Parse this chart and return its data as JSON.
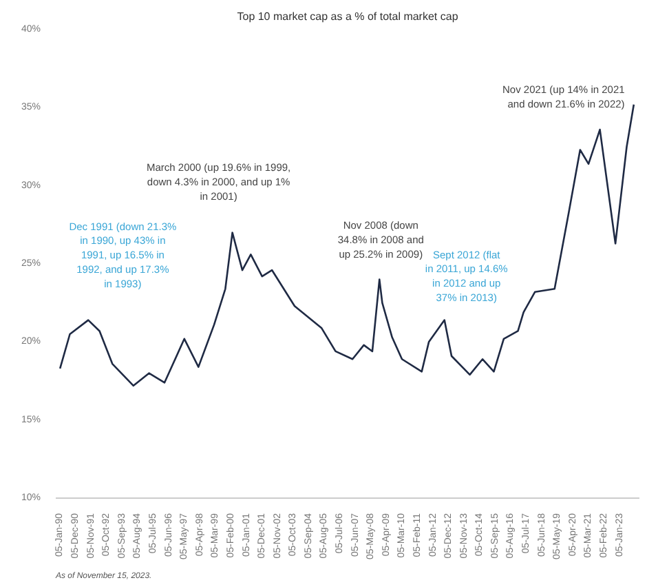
{
  "chart_data": {
    "type": "line",
    "title": "Top 10 market cap as a % of total market cap",
    "x": [
      "1990-01",
      "1990-08",
      "1991-09",
      "1992-05",
      "1993-02",
      "1994-05",
      "1995-04",
      "1996-03",
      "1997-05",
      "1998-03",
      "1999-02",
      "1999-10",
      "2000-03",
      "2000-10",
      "2001-04",
      "2001-12",
      "2002-07",
      "2003-11",
      "2005-06",
      "2006-04",
      "2007-04",
      "2007-12",
      "2008-06",
      "2008-11",
      "2009-01",
      "2009-08",
      "2010-03",
      "2011-05",
      "2011-10",
      "2012-09",
      "2013-02",
      "2014-03",
      "2014-12",
      "2015-08",
      "2016-03",
      "2017-01",
      "2017-05",
      "2018-01",
      "2019-03",
      "2020-01",
      "2020-09",
      "2021-03",
      "2021-11",
      "2022-10",
      "2023-06",
      "2023-11"
    ],
    "series": [
      {
        "color": "#1f2a44",
        "values": [
          18.3,
          20.5,
          21.4,
          20.7,
          18.6,
          17.2,
          18.0,
          17.4,
          20.2,
          18.4,
          21.1,
          23.4,
          27.0,
          24.6,
          25.6,
          24.2,
          24.6,
          22.3,
          20.9,
          19.4,
          18.9,
          19.8,
          19.4,
          24.0,
          22.5,
          20.3,
          18.9,
          18.1,
          20.0,
          21.4,
          19.1,
          17.9,
          18.9,
          18.1,
          20.2,
          20.7,
          21.9,
          23.2,
          23.4,
          28.3,
          32.3,
          31.4,
          33.6,
          26.3,
          32.5,
          35.2
        ]
      }
    ],
    "ylim": [
      10,
      40
    ],
    "yticks": [
      {
        "value": 10,
        "label": "10%"
      },
      {
        "value": 15,
        "label": "15%"
      },
      {
        "value": 20,
        "label": "20%"
      },
      {
        "value": 25,
        "label": "25%"
      },
      {
        "value": 30,
        "label": "30%"
      },
      {
        "value": 35,
        "label": "35%"
      },
      {
        "value": 40,
        "label": "40%"
      }
    ],
    "xlim": [
      "1989-10",
      "2024-03"
    ],
    "xticks": [
      {
        "value": "1990-01-05",
        "label": "05-Jan-90"
      },
      {
        "value": "1990-12-05",
        "label": "05-Dec-90"
      },
      {
        "value": "1991-11-05",
        "label": "05-Nov-91"
      },
      {
        "value": "1992-10-05",
        "label": "05-Oct-92"
      },
      {
        "value": "1993-09-05",
        "label": "05-Sep-93"
      },
      {
        "value": "1994-08-05",
        "label": "05-Aug-94"
      },
      {
        "value": "1995-07-05",
        "label": "05-Jul-95"
      },
      {
        "value": "1996-06-05",
        "label": "05-Jun-96"
      },
      {
        "value": "1997-05-05",
        "label": "05-May-97"
      },
      {
        "value": "1998-04-05",
        "label": "05-Apr-98"
      },
      {
        "value": "1999-03-05",
        "label": "05-Mar-99"
      },
      {
        "value": "2000-02-05",
        "label": "05-Feb-00"
      },
      {
        "value": "2001-01-05",
        "label": "05-Jan-01"
      },
      {
        "value": "2001-12-05",
        "label": "05-Dec-01"
      },
      {
        "value": "2002-11-05",
        "label": "05-Nov-02"
      },
      {
        "value": "2003-10-05",
        "label": "05-Oct-03"
      },
      {
        "value": "2004-09-05",
        "label": "05-Sep-04"
      },
      {
        "value": "2005-08-05",
        "label": "05-Aug-05"
      },
      {
        "value": "2006-07-05",
        "label": "05-Jul-06"
      },
      {
        "value": "2007-06-05",
        "label": "05-Jun-07"
      },
      {
        "value": "2008-05-05",
        "label": "05-May-08"
      },
      {
        "value": "2009-04-05",
        "label": "05-Apr-09"
      },
      {
        "value": "2010-03-05",
        "label": "05-Mar-10"
      },
      {
        "value": "2011-02-05",
        "label": "05-Feb-11"
      },
      {
        "value": "2012-01-05",
        "label": "05-Jan-12"
      },
      {
        "value": "2012-12-05",
        "label": "05-Dec-12"
      },
      {
        "value": "2013-11-05",
        "label": "05-Nov-13"
      },
      {
        "value": "2014-10-05",
        "label": "05-Oct-14"
      },
      {
        "value": "2015-09-05",
        "label": "05-Sep-15"
      },
      {
        "value": "2016-08-05",
        "label": "05-Aug-16"
      },
      {
        "value": "2017-07-05",
        "label": "05-Jul-17"
      },
      {
        "value": "2018-06-05",
        "label": "05-Jun-18"
      },
      {
        "value": "2019-05-05",
        "label": "05-May-19"
      },
      {
        "value": "2020-04-05",
        "label": "05-Apr-20"
      },
      {
        "value": "2021-03-05",
        "label": "05-Mar-21"
      },
      {
        "value": "2022-02-05",
        "label": "05-Feb-22"
      },
      {
        "value": "2023-01-05",
        "label": "05-Jan-23"
      }
    ],
    "grid": false,
    "annotations": [
      {
        "text": "Dec 1991 (down 21.3% in 1990, up 43% in 1991, up 16.5% in 1992, and up 17.3% in 1993)",
        "x": "1991-12",
        "y": 21.4
      },
      {
        "text": "March 2000 (up 19.6% in 1999, down 4.3% in 2000, and up 1% in 2001)",
        "x": "2000-03",
        "y": 27.0
      },
      {
        "text": "Nov 2008 (down 34.8% in 2008 and up 25.2% in 2009)",
        "x": "2008-11",
        "y": 24.0
      },
      {
        "text": "Sept 2012 (flat in 2011, up 14.6% in 2012 and up 37% in 2013)",
        "x": "2012-09",
        "y": 21.4
      },
      {
        "text": "Nov 2021 (up 14% in 2021 and down 21.6% in 2022)",
        "x": "2021-11",
        "y": 33.6
      },
      "As of November 15, 2023."
    ]
  }
}
